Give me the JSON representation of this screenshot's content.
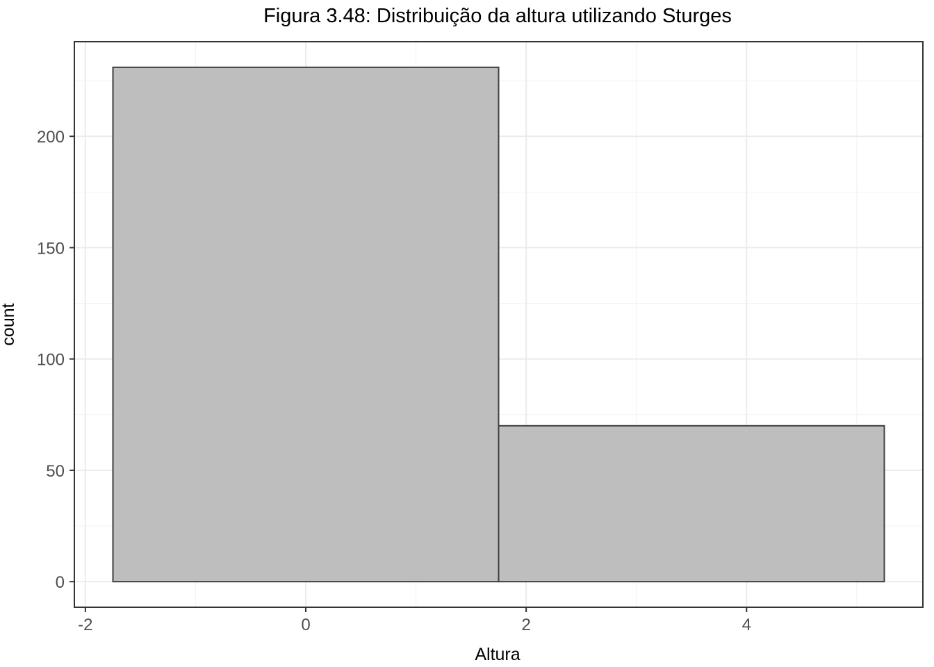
{
  "chart_data": {
    "type": "bar",
    "title": "Figura 3.48: Distribuição da altura utilizando Sturges",
    "xlabel": "Altura",
    "ylabel": "count",
    "bins": [
      {
        "x0": -1.75,
        "x1": 1.75,
        "count": 231
      },
      {
        "x0": 1.75,
        "x1": 5.25,
        "count": 70
      }
    ],
    "xlim": [
      -2.1,
      5.6
    ],
    "ylim": [
      -11.5,
      242.5
    ],
    "x_ticks": [
      {
        "value": -2,
        "label": "-2"
      },
      {
        "value": 0,
        "label": "0"
      },
      {
        "value": 2,
        "label": "2"
      },
      {
        "value": 4,
        "label": "4"
      }
    ],
    "y_ticks": [
      {
        "value": 0,
        "label": "0"
      },
      {
        "value": 50,
        "label": "50"
      },
      {
        "value": 100,
        "label": "100"
      },
      {
        "value": 150,
        "label": "150"
      },
      {
        "value": 200,
        "label": "200"
      }
    ],
    "grid": true,
    "colors": {
      "bar_fill": "#bebebe",
      "bar_stroke": "#3f3f3f",
      "grid": "#ebebeb",
      "border": "#333333"
    }
  }
}
